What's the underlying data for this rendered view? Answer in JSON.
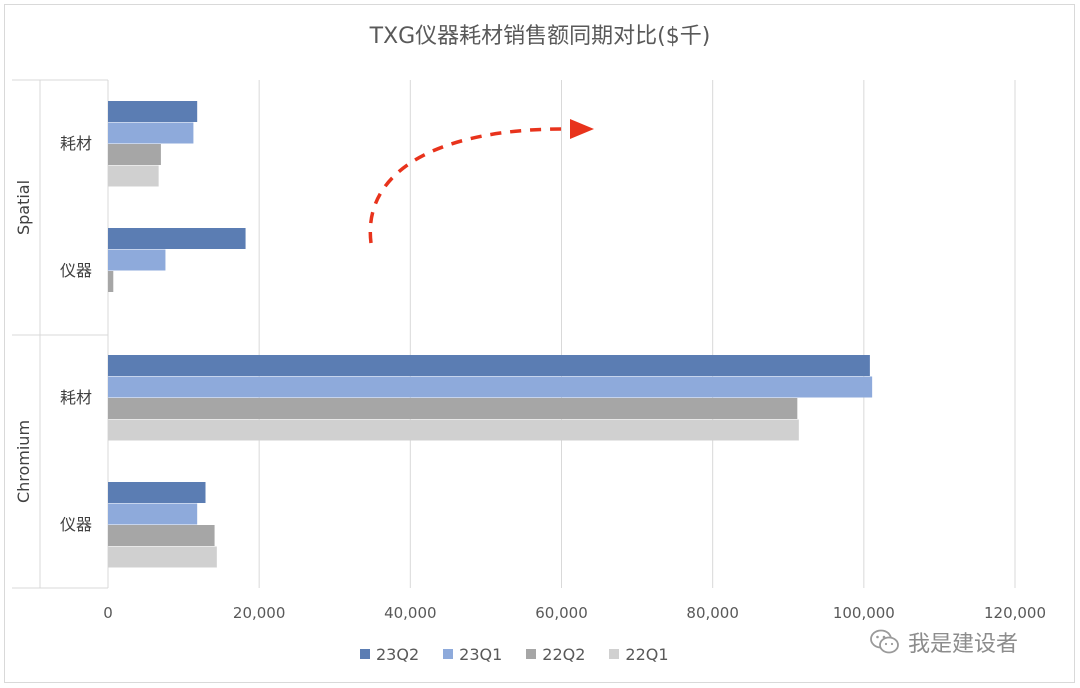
{
  "chart_data": {
    "type": "bar",
    "orientation": "horizontal",
    "title": "TXG仪器耗材销售额同期对比($千)",
    "groups": [
      {
        "name": "Spatial",
        "categories": [
          "耗材",
          "仪器"
        ]
      },
      {
        "name": "Chromium",
        "categories": [
          "耗材",
          "仪器"
        ]
      }
    ],
    "series": [
      {
        "name": "23Q2",
        "color": "#5b7db3",
        "values": [
          11800,
          18200,
          100800,
          12900
        ]
      },
      {
        "name": "23Q1",
        "color": "#8eaadb",
        "values": [
          11300,
          7600,
          101100,
          11800
        ]
      },
      {
        "name": "22Q2",
        "color": "#a6a6a6",
        "values": [
          7000,
          700,
          91200,
          14100
        ]
      },
      {
        "name": "22Q1",
        "color": "#d0d0d0",
        "values": [
          6700,
          0,
          91400,
          14400
        ]
      }
    ],
    "xlim": [
      0,
      120000
    ],
    "xticks": [
      "0",
      "20,000",
      "40,000",
      "60,000",
      "80,000",
      "100,000",
      "120,000"
    ],
    "grid": true,
    "legend_position": "bottom",
    "annotation_arrow_color": "#e8331c"
  },
  "watermark": {
    "text": "我是建设者",
    "icon": "wechat-icon"
  }
}
